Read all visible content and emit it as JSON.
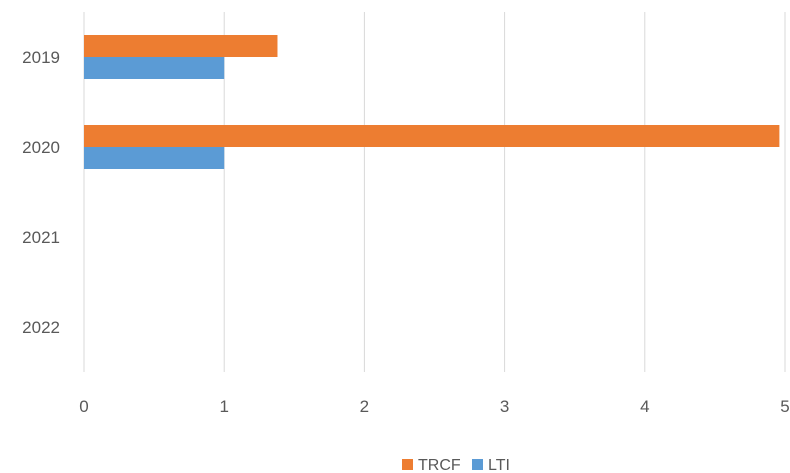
{
  "chart_data": {
    "type": "bar",
    "orientation": "horizontal",
    "categories": [
      "2019",
      "2020",
      "2021",
      "2022"
    ],
    "series": [
      {
        "name": "TRCF",
        "color": "#ed7d31",
        "values": [
          1.38,
          4.96,
          null,
          null
        ]
      },
      {
        "name": "LTI",
        "color": "#5b9bd5",
        "values": [
          1,
          1,
          null,
          null
        ]
      }
    ],
    "xlim": [
      0,
      5
    ],
    "x_ticks": [
      "0",
      "1",
      "2",
      "3",
      "4",
      "5"
    ],
    "grid": true,
    "legend_position": "bottom",
    "title": "",
    "xlabel": "",
    "ylabel": ""
  }
}
